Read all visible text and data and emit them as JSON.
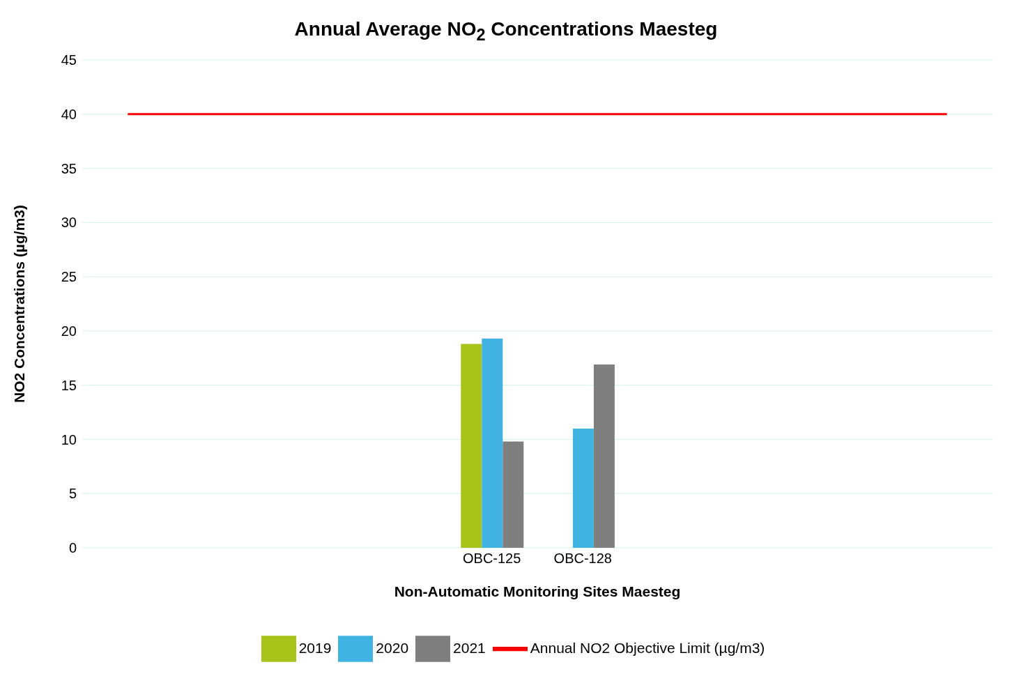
{
  "chart_data": {
    "type": "bar",
    "title": "Annual Average NO$_{2}$ Concentrations Maesteg",
    "xlabel": "Non-Automatic Monitoring Sites Maesteg",
    "ylabel": "NO2 Concentrations (µg/m3)",
    "categories": [
      null,
      null,
      null,
      null,
      "OBC-125",
      "OBC-128",
      null,
      null,
      null,
      null
    ],
    "series": [
      {
        "name": "2019",
        "color": "#a9c21a",
        "values": [
          null,
          null,
          null,
          null,
          18.8,
          null,
          null,
          null,
          null,
          null
        ]
      },
      {
        "name": "2020",
        "color": "#41b3e3",
        "values": [
          null,
          null,
          null,
          null,
          19.3,
          11.0,
          null,
          null,
          null,
          null
        ]
      },
      {
        "name": "2021",
        "color": "#7f7f7f",
        "values": [
          null,
          null,
          null,
          null,
          9.8,
          16.9,
          null,
          null,
          null,
          null
        ]
      },
      {
        "name": "Annual NO2 Objective Limit (µg/m3)",
        "type": "line",
        "color": "#ff0000",
        "values": [
          40,
          40,
          40,
          40,
          40,
          40,
          40,
          40,
          40,
          40
        ]
      }
    ],
    "ylim": [
      0,
      45
    ],
    "yticks": [
      0,
      5,
      10,
      15,
      20,
      25,
      30,
      35,
      40,
      45
    ],
    "grid": "y",
    "legend": "bottom",
    "marker": "none"
  }
}
